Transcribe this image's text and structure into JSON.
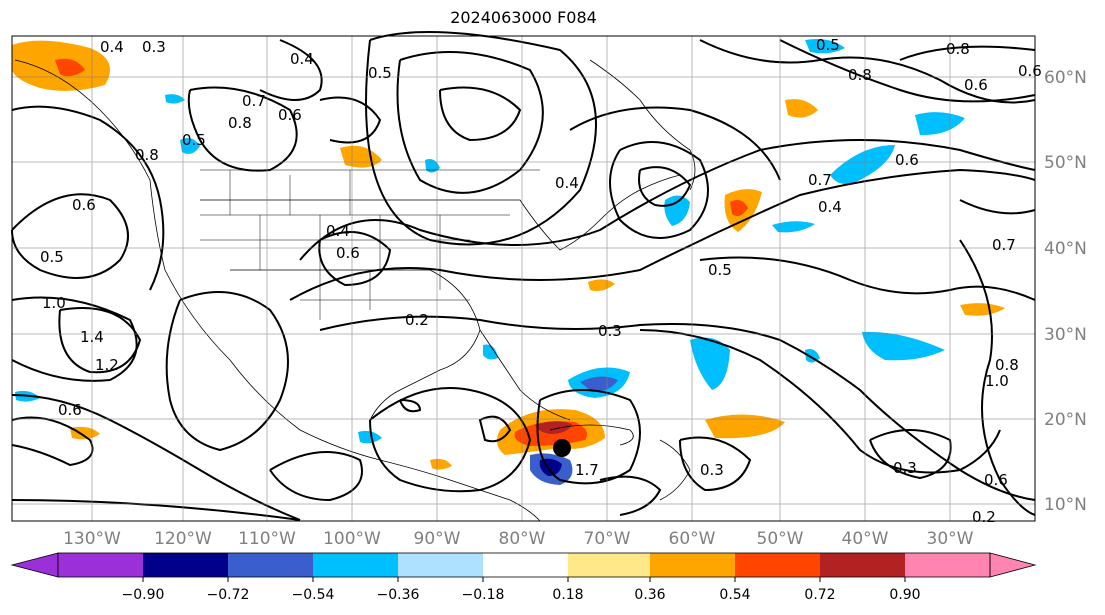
{
  "map": {
    "title": "2024063000 F084",
    "lon_labels": [
      "130°W",
      "120°W",
      "110°W",
      "100°W",
      "90°W",
      "80°W",
      "70°W",
      "60°W",
      "50°W",
      "40°W",
      "30°W"
    ],
    "lat_labels": [
      "60°N",
      "50°N",
      "40°N",
      "30°N",
      "20°N",
      "10°N"
    ],
    "contour_labels": [
      "0.4",
      "0.3",
      "0.4",
      "0.5",
      "0.6",
      "0.8",
      "0.7",
      "0.8",
      "0.5",
      "0.6",
      "1.0",
      "1.4",
      "1.2",
      "0.6",
      "0.5",
      "0.4",
      "0.6",
      "0.2",
      "0.3",
      "0.4",
      "0.5",
      "0.6",
      "0.7",
      "0.4",
      "0.5",
      "0.6",
      "0.7",
      "0.8",
      "0.6",
      "0.8",
      "0.3",
      "0.3",
      "0.6",
      "0.2",
      "1.7",
      "0.8",
      "1.0"
    ],
    "storm_marker": "tropical-cyclone-center"
  },
  "colorbar": {
    "ticks": [
      "−0.90",
      "−0.72",
      "−0.54",
      "−0.36",
      "−0.18",
      "0.18",
      "0.36",
      "0.54",
      "0.72",
      "0.90"
    ],
    "colors": [
      "#9b30d9",
      "#00008b",
      "#3a5fcd",
      "#00bfff",
      "#aee0ff",
      "#ffffff",
      "#ffe88a",
      "#ffa500",
      "#ff4500",
      "#b22222",
      "#ff85b0"
    ]
  }
}
